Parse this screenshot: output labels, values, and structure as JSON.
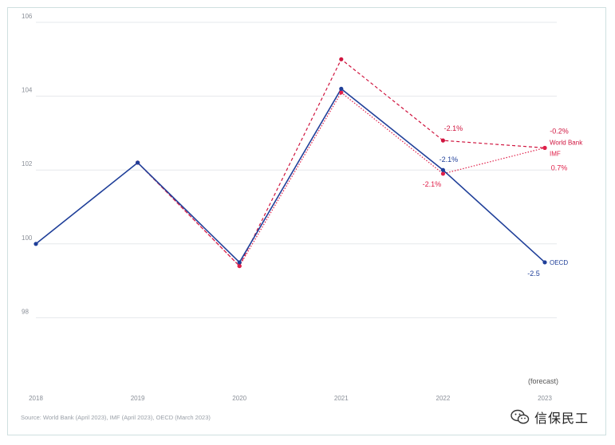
{
  "chart_data": {
    "type": "line",
    "title": "",
    "xlabel": "",
    "ylabel": "",
    "categories": [
      "2018",
      "2019",
      "2020",
      "2021",
      "2022",
      "2023"
    ],
    "ylim": [
      96,
      106
    ],
    "yticks": [
      "98",
      "100",
      "102",
      "104",
      "106"
    ],
    "grid": true,
    "forecast_note": "(forecast)",
    "series": [
      {
        "name": "OECD",
        "color": "#1f3f99",
        "style": "solid",
        "values": [
          100,
          102.2,
          99.5,
          104.2,
          102.0,
          99.5
        ]
      },
      {
        "name": "World Bank",
        "color": "#d0153f",
        "style": "dashed",
        "values": [
          null,
          102.2,
          99.4,
          105.0,
          102.8,
          102.6
        ]
      },
      {
        "name": "IMF",
        "color": "#e0204a",
        "style": "dotted",
        "values": [
          null,
          102.2,
          99.4,
          104.1,
          101.9,
          102.6
        ]
      }
    ],
    "annotations": [
      {
        "series": "World Bank",
        "category": "2022",
        "text": "-2.1%",
        "pos": "above"
      },
      {
        "series": "OECD",
        "category": "2022",
        "text": "-2.1%",
        "pos": "above"
      },
      {
        "series": "IMF",
        "category": "2022",
        "text": "-2.1%",
        "pos": "below"
      },
      {
        "series": "World Bank",
        "category": "2023",
        "text": "-0.2%",
        "pos": "above"
      },
      {
        "series": "IMF",
        "category": "2023",
        "text": "0.7%",
        "pos": "below"
      },
      {
        "series": "OECD",
        "category": "2023",
        "text": "-2.5",
        "pos": "below"
      }
    ],
    "source": "Source: World Bank (April 2023), IMF (April 2023), OECD (March 2023)"
  },
  "watermark": {
    "text": "信保民工",
    "icon": "wechat-icon"
  }
}
